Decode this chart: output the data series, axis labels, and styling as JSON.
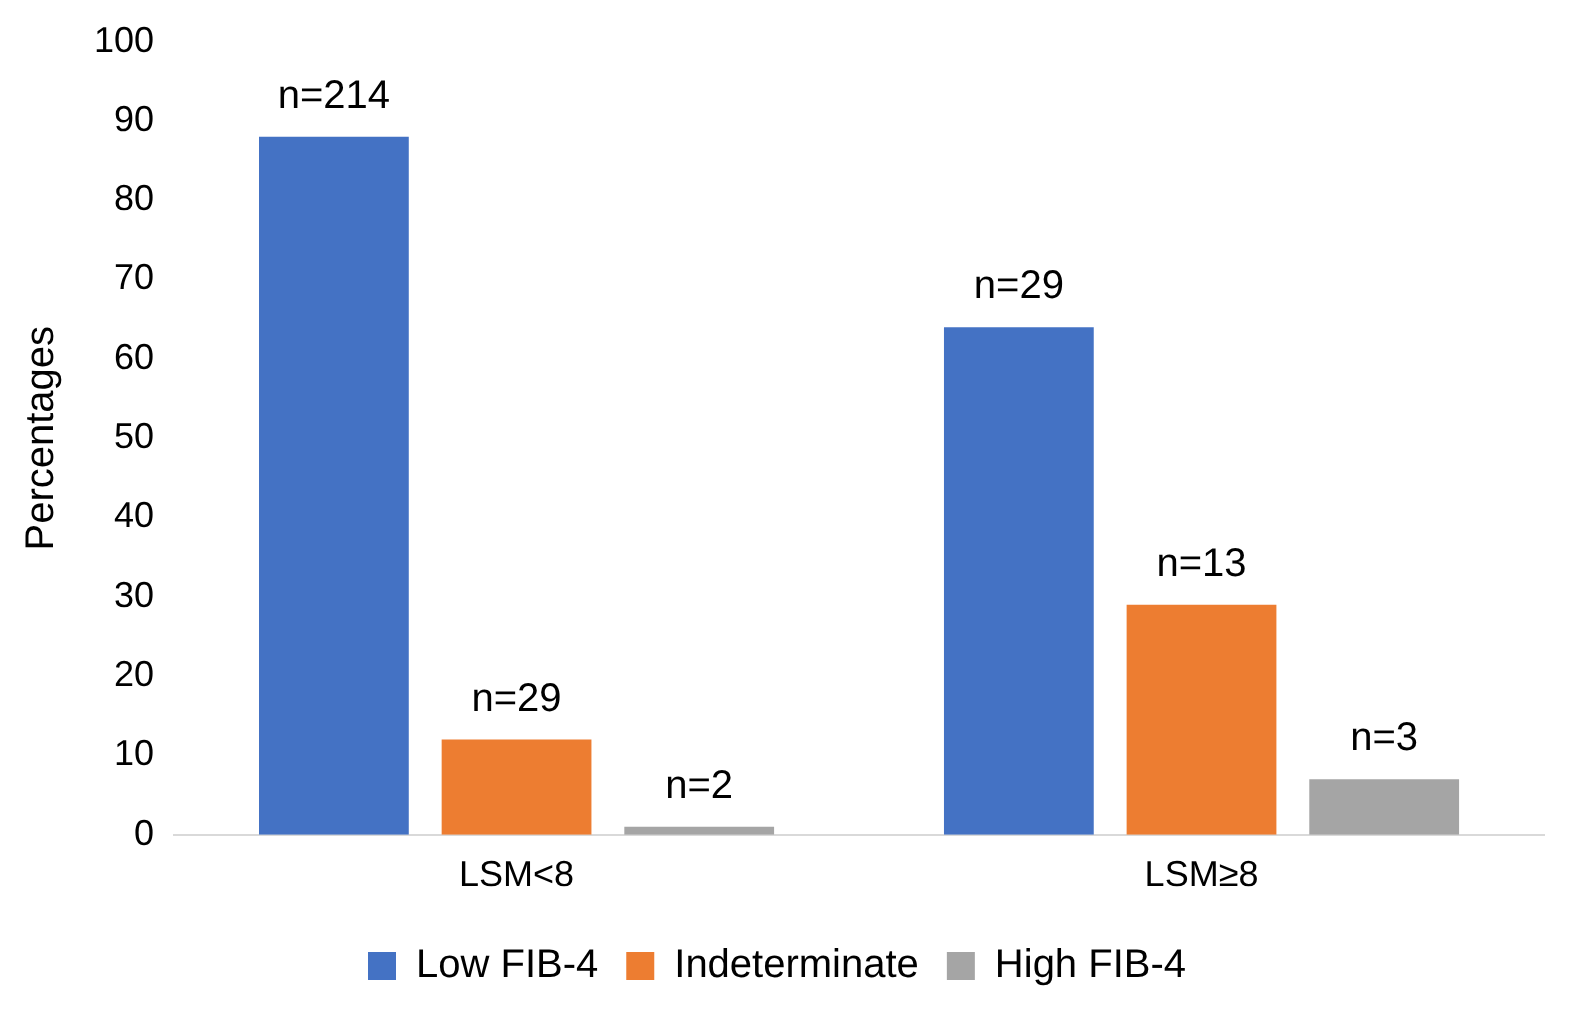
{
  "chart_data": {
    "type": "bar",
    "ylabel": "Percentages",
    "categories": [
      "LSM<8",
      "LSM≥8"
    ],
    "series": [
      {
        "name": "Low FIB-4",
        "color": "#4472c4",
        "values": [
          88,
          64
        ]
      },
      {
        "name": "Indeterminate",
        "color": "#ed7d31",
        "values": [
          12,
          29
        ]
      },
      {
        "name": "High FIB-4",
        "color": "#a5a5a5",
        "values": [
          1,
          7
        ]
      }
    ],
    "annotations": [
      "n=214",
      "n=29",
      "n=2",
      "n=29",
      "n=13",
      "n=3"
    ],
    "ylim": [
      0,
      100
    ],
    "yticks": [
      0,
      10,
      20,
      30,
      40,
      50,
      60,
      70,
      80,
      90,
      100
    ],
    "grid": false,
    "legend": "bottom"
  }
}
